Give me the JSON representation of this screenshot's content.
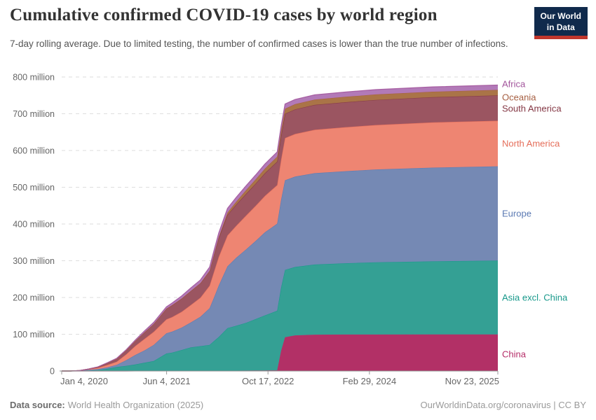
{
  "header": {
    "title": "Cumulative confirmed COVID-19 cases by world region",
    "subtitle": "7-day rolling average. Due to limited testing, the number of confirmed cases is lower than the true number of infections."
  },
  "logo": {
    "line1": "Our World",
    "line2": "in Data",
    "bg_color": "#102a4c",
    "accent_color": "#c0362c"
  },
  "footer": {
    "source_label": "Data source:",
    "source_text": "World Health Organization (2025)",
    "right_text": "OurWorldinData.org/coronavirus | CC BY"
  },
  "chart_data": {
    "type": "area",
    "stacked": true,
    "title": "Cumulative confirmed COVID-19 cases by world region",
    "xlabel": "",
    "ylabel": "",
    "unit": "million cases",
    "ylim": [
      0,
      800
    ],
    "grid": "dashed-horizontal",
    "legend_position": "right-direct-labels",
    "y_ticks": [
      {
        "value": 0,
        "label": "0"
      },
      {
        "value": 100,
        "label": "100 million"
      },
      {
        "value": 200,
        "label": "200 million"
      },
      {
        "value": 300,
        "label": "300 million"
      },
      {
        "value": 400,
        "label": "400 million"
      },
      {
        "value": 500,
        "label": "500 million"
      },
      {
        "value": 600,
        "label": "600 million"
      },
      {
        "value": 700,
        "label": "700 million"
      },
      {
        "value": 800,
        "label": "800 million"
      }
    ],
    "x_ticks": [
      {
        "f": 0.0,
        "label": "Jan 4, 2020",
        "align": "start"
      },
      {
        "f": 0.2405,
        "label": "Jun 4, 2021",
        "align": "middle"
      },
      {
        "f": 0.473,
        "label": "Oct 17, 2022",
        "align": "middle"
      },
      {
        "f": 0.7056,
        "label": "Feb 29, 2024",
        "align": "middle"
      },
      {
        "f": 1.0,
        "label": "Nov 23, 2025",
        "align": "end"
      }
    ],
    "x_range": [
      "Jan 4, 2020",
      "Nov 23, 2025"
    ],
    "x": [
      0,
      0.02,
      0.041,
      0.06,
      0.083,
      0.105,
      0.126,
      0.148,
      0.169,
      0.19,
      0.211,
      0.24,
      0.253,
      0.275,
      0.296,
      0.318,
      0.339,
      0.35,
      0.36,
      0.38,
      0.4,
      0.423,
      0.445,
      0.466,
      0.494,
      0.503,
      0.512,
      0.535,
      0.58,
      0.65,
      0.72,
      0.85,
      1.0
    ],
    "series": [
      {
        "name": "China",
        "fill": "#b23066",
        "color": "#b52d68",
        "label_y": 506,
        "values": [
          0,
          0.02,
          0.08,
          0.084,
          0.085,
          0.089,
          0.09,
          0.092,
          0.1,
          0.1,
          0.1,
          0.1,
          0.12,
          0.12,
          0.12,
          0.125,
          0.13,
          0.2,
          0.3,
          0.8,
          1.0,
          1.2,
          1.35,
          1.5,
          2,
          55,
          92,
          97,
          98.8,
          99.2,
          99.3,
          99.35,
          99.4
        ]
      },
      {
        "name": "Asia excl. China",
        "fill": "#34a094",
        "color": "#18998b",
        "label_y": 425,
        "values": [
          0,
          0.001,
          0.3,
          1.2,
          2.3,
          6.0,
          10.7,
          14,
          17.8,
          22.5,
          27,
          47.5,
          50,
          57,
          64,
          67.5,
          71,
          82,
          92,
          116,
          122,
          130,
          140,
          150,
          162,
          172,
          183,
          186,
          191,
          194,
          196.5,
          199,
          201
        ]
      },
      {
        "name": "Europe",
        "fill": "#7589b4",
        "color": "#5b7ab3",
        "label_y": 305,
        "values": [
          0,
          0,
          0.5,
          1.8,
          2.7,
          3.9,
          6.0,
          15.5,
          26,
          33.5,
          44,
          55,
          57,
          61,
          68,
          80,
          100,
          120,
          140,
          168,
          185,
          200,
          213,
          226,
          237,
          239,
          244,
          246,
          248.5,
          250.5,
          252.5,
          255,
          256.5
        ]
      },
      {
        "name": "North America",
        "fill": "#ee8572",
        "color": "#e56e5a",
        "label_y": 205,
        "values": [
          0,
          0,
          0.25,
          1.5,
          3.4,
          6.5,
          8.6,
          16,
          24.5,
          31.5,
          35.5,
          38,
          39.5,
          43,
          47.5,
          52,
          61,
          71,
          78,
          84,
          87,
          92,
          95.5,
          99,
          105,
          109,
          115,
          116,
          118,
          119.5,
          121,
          123,
          124
        ]
      },
      {
        "name": "South America",
        "fill": "#9b5561",
        "color": "#843744",
        "label_y": 155,
        "values": [
          0,
          0,
          0.02,
          0.4,
          2.3,
          5.2,
          7.8,
          10.7,
          13.6,
          18,
          21.5,
          29,
          32.5,
          36,
          38,
          39,
          40,
          46,
          51,
          56,
          57.5,
          59,
          60.5,
          62,
          64,
          65,
          66,
          67,
          67.8,
          68.2,
          68.5,
          68.8,
          69
        ]
      },
      {
        "name": "Oceania",
        "fill": "#aa7447",
        "color": "#a65f42",
        "label_y": 139,
        "values": [
          0,
          0,
          0.005,
          0.008,
          0.01,
          0.025,
          0.03,
          0.04,
          0.05,
          0.055,
          0.06,
          0.08,
          0.08,
          0.13,
          0.21,
          0.4,
          0.7,
          1.8,
          3.0,
          6.0,
          8.0,
          10.3,
          11.5,
          12.6,
          13.4,
          13.5,
          13.8,
          14.1,
          14.4,
          14.6,
          14.8,
          14.9,
          15
        ]
      },
      {
        "name": "Africa",
        "fill": "#b27ab8",
        "color": "#a2559c",
        "label_y": 120,
        "values": [
          0,
          0,
          0.007,
          0.07,
          0.4,
          1.1,
          1.5,
          2.0,
          2.8,
          3.8,
          4.3,
          5.0,
          5.7,
          7.2,
          8.3,
          8.8,
          9.8,
          10.6,
          11.2,
          11.6,
          11.8,
          12,
          12.15,
          12.3,
          12.6,
          12.6,
          12.7,
          12.8,
          12.9,
          13.0,
          13.05,
          13.15,
          13.2
        ]
      }
    ]
  }
}
